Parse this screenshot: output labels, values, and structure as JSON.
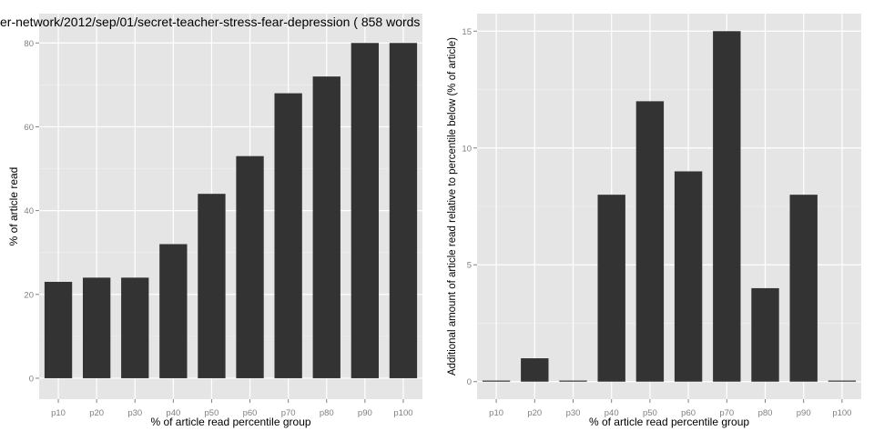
{
  "chart_data": [
    {
      "type": "bar",
      "title": "er-network/2012/sep/01/secret-teacher-stress-fear-depression ( 858 words",
      "xlabel": "% of article read percentile group",
      "ylabel": "% of article read",
      "categories": [
        "p10",
        "p20",
        "p30",
        "p40",
        "p50",
        "p60",
        "p70",
        "p80",
        "p90",
        "p100"
      ],
      "values": [
        23,
        24,
        24,
        32,
        44,
        53,
        68,
        72,
        80,
        80
      ],
      "ylim": [
        -5,
        87
      ],
      "yticks": [
        0,
        20,
        40,
        60,
        80
      ],
      "ytick_labels": [
        "0",
        "20",
        "40",
        "60",
        "80"
      ],
      "grid": true
    },
    {
      "type": "bar",
      "title": "",
      "xlabel": "% of article read percentile group",
      "ylabel": "Additional amount of article read relative to percentile below (% of article)",
      "categories": [
        "p10",
        "p20",
        "p30",
        "p40",
        "p50",
        "p60",
        "p70",
        "p80",
        "p90",
        "p100"
      ],
      "values": [
        0,
        1,
        0,
        8,
        12,
        9,
        15,
        4,
        8,
        0
      ],
      "ylim": [
        -0.75,
        15.75
      ],
      "yticks": [
        0,
        5,
        10,
        15
      ],
      "ytick_labels": [
        "0",
        "5",
        "10",
        "15"
      ],
      "grid": true
    }
  ],
  "colors": {
    "panel_background": "#e5e5e5",
    "bar_fill": "#333333",
    "grid_major": "#ffffff",
    "tick_text": "#7f7f7f"
  }
}
